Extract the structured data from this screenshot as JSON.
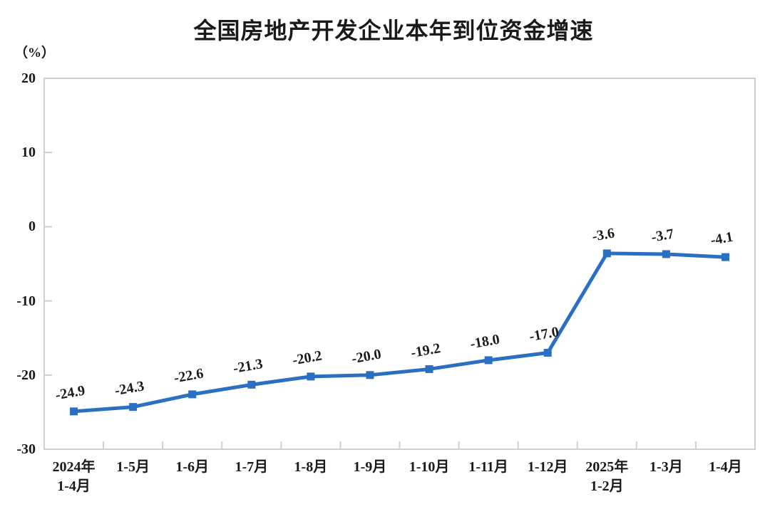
{
  "chart_data": {
    "type": "line",
    "title": "全国房地产开发企业本年到位资金增速",
    "unit_label": "（%）",
    "categories": [
      "2024年\n1-4月",
      "1-5月",
      "1-6月",
      "1-7月",
      "1-8月",
      "1-9月",
      "1-10月",
      "1-11月",
      "1-12月",
      "2025年\n1-2月",
      "1-3月",
      "1-4月"
    ],
    "values": [
      -24.9,
      -24.3,
      -22.6,
      -21.3,
      -20.2,
      -20.0,
      -19.2,
      -18.0,
      -17.0,
      -3.6,
      -3.7,
      -4.1
    ],
    "data_labels": [
      "-24.9",
      "-24.3",
      "-22.6",
      "-21.3",
      "-20.2",
      "-20.0",
      "-19.2",
      "-18.0",
      "-17.0",
      "-3.6",
      "-3.7",
      "-4.1"
    ],
    "yticks": [
      20,
      10,
      0,
      -10,
      -20,
      -30
    ],
    "ylim": [
      -30,
      20
    ],
    "xlabel": "",
    "ylabel": "（%）",
    "grid": false,
    "legend_position": "none",
    "marker": "square",
    "line_color": "#2B6FC2",
    "axis_color": "#CFCFCF",
    "text_color": "#1a1a1a"
  }
}
